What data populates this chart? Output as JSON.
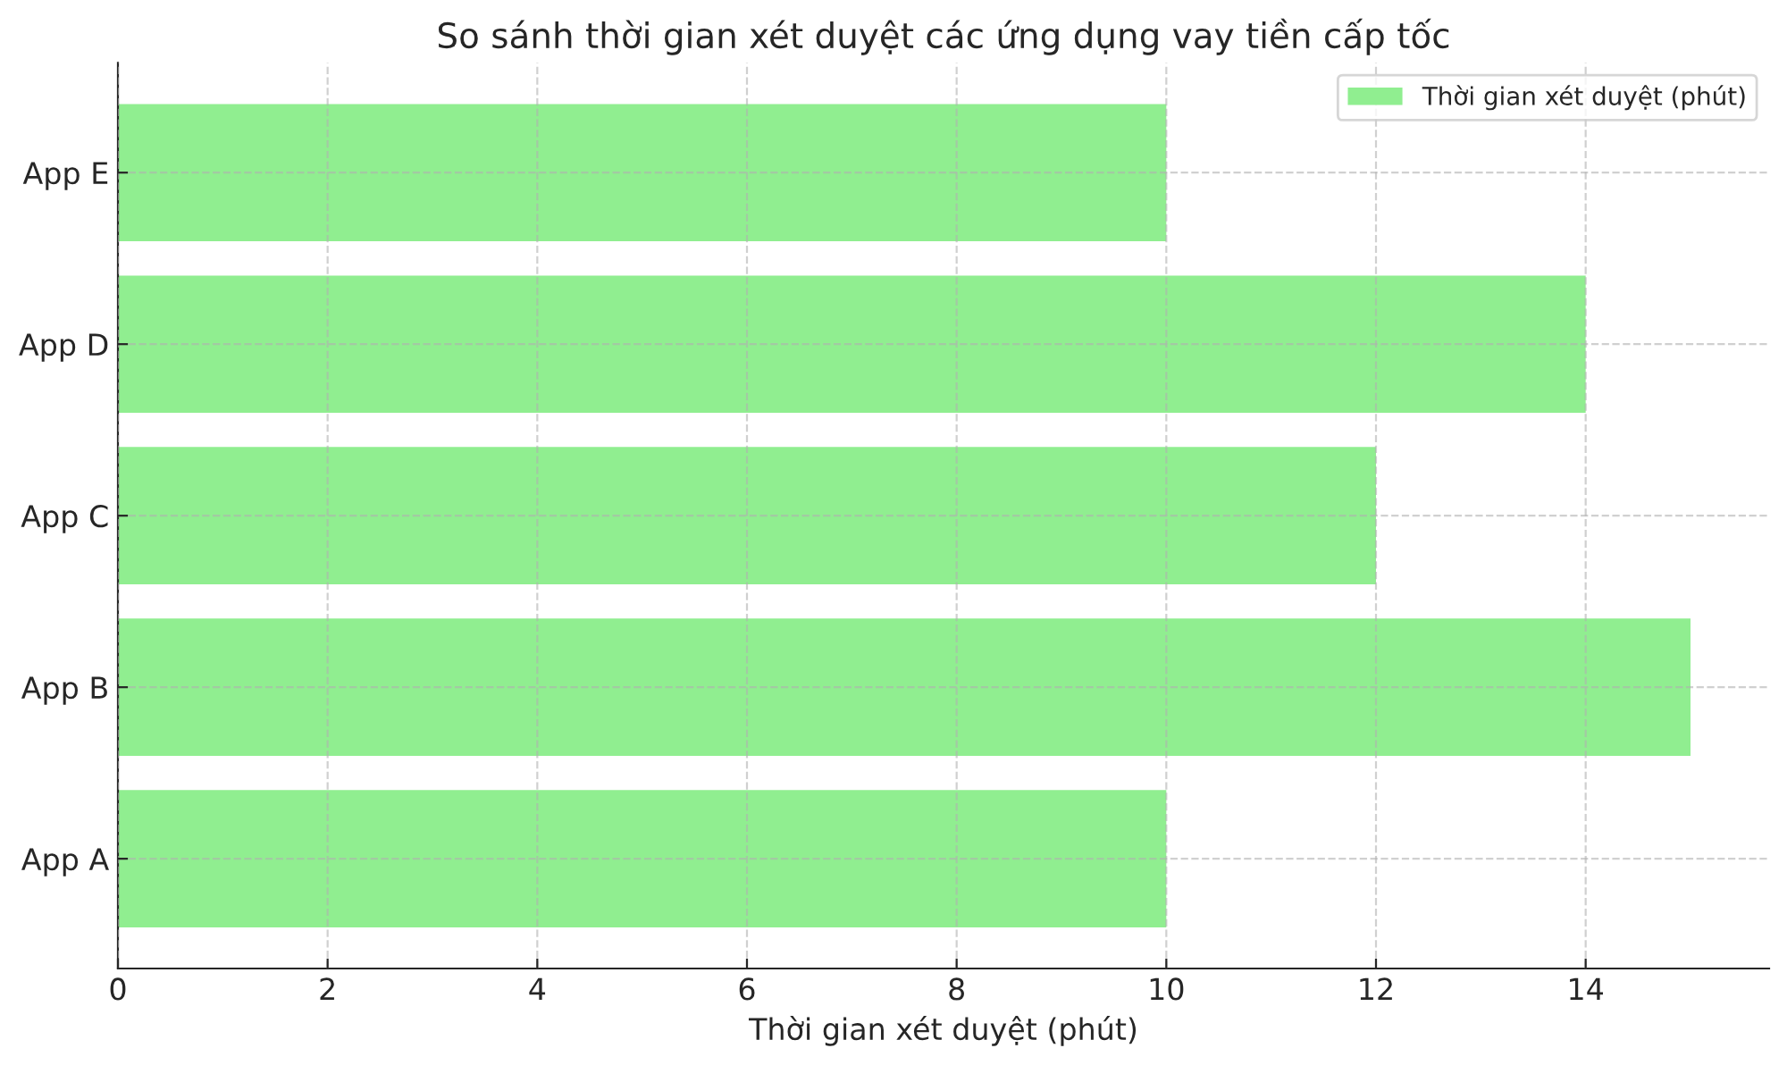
{
  "chart_data": {
    "type": "bar",
    "orientation": "horizontal",
    "title": "So sánh thời gian xét duyệt các ứng dụng vay tiền cấp tốc",
    "xlabel": "Thời gian xét duyệt (phút)",
    "categories": [
      "App E",
      "App D",
      "App C",
      "App B",
      "App A"
    ],
    "series": [
      {
        "name": "Thời gian xét duyệt (phút)",
        "color": "#90ee90",
        "values": [
          10,
          14,
          12,
          15,
          10
        ]
      }
    ],
    "xlim": [
      0,
      15.75
    ],
    "xticks": [
      0,
      2,
      4,
      6,
      8,
      10,
      12,
      14
    ],
    "grid": true,
    "legend": "top right"
  }
}
